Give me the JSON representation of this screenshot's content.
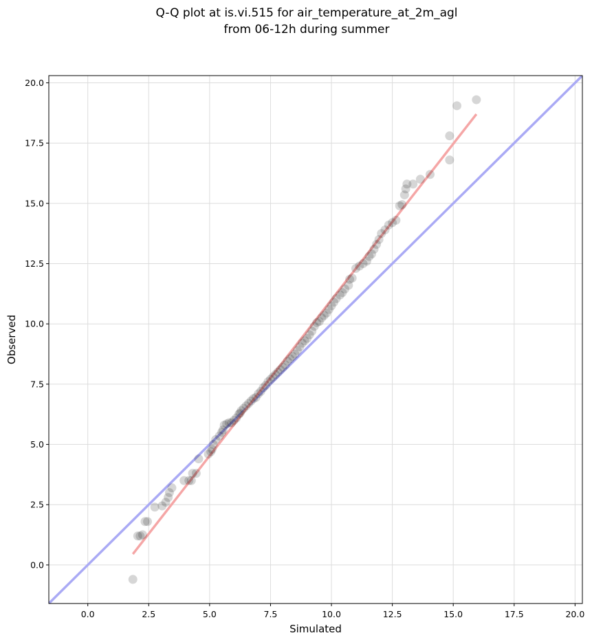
{
  "chart_data": {
    "type": "scatter",
    "title": [
      "Q-Q plot at is.vi.515 for air_temperature_at_2m_agl",
      "from 06-12h during summer"
    ],
    "xlabel": "Simulated",
    "ylabel": "Observed",
    "xlim": [
      -1.6,
      20.3
    ],
    "ylim": [
      -1.6,
      20.3
    ],
    "xticks": [
      0.0,
      2.5,
      5.0,
      7.5,
      10.0,
      12.5,
      15.0,
      17.5,
      20.0
    ],
    "yticks": [
      0.0,
      2.5,
      5.0,
      7.5,
      10.0,
      12.5,
      15.0,
      17.5,
      20.0
    ],
    "xtick_labels": [
      "0.0",
      "2.5",
      "5.0",
      "7.5",
      "10.0",
      "12.5",
      "15.0",
      "17.5",
      "20.0"
    ],
    "ytick_labels": [
      "0.0",
      "2.5",
      "5.0",
      "7.5",
      "10.0",
      "12.5",
      "15.0",
      "17.5",
      "20.0"
    ],
    "grid": true,
    "reference_line": {
      "color": "#aaaaf5",
      "x": [
        -1.6,
        20.3
      ],
      "y": [
        -1.6,
        20.3
      ]
    },
    "fit_line": {
      "color": "#f5a6a6",
      "x": [
        1.85,
        15.95
      ],
      "y": [
        0.45,
        18.7
      ]
    },
    "points": {
      "x": [
        1.85,
        2.05,
        2.15,
        2.25,
        2.35,
        2.45,
        2.75,
        3.05,
        3.2,
        3.3,
        3.35,
        3.45,
        3.95,
        4.15,
        4.25,
        4.3,
        4.45,
        4.55,
        4.95,
        5.05,
        5.1,
        5.15,
        5.25,
        5.4,
        5.5,
        5.55,
        5.6,
        5.7,
        5.8,
        5.9,
        6.0,
        6.1,
        6.2,
        6.25,
        6.3,
        6.4,
        6.5,
        6.6,
        6.7,
        6.8,
        6.9,
        7.0,
        7.1,
        7.2,
        7.3,
        7.4,
        7.5,
        7.6,
        7.7,
        7.8,
        7.9,
        8.0,
        8.1,
        8.2,
        8.3,
        8.4,
        8.5,
        8.6,
        8.7,
        8.8,
        8.9,
        9.0,
        9.1,
        9.2,
        9.3,
        9.4,
        9.5,
        9.6,
        9.7,
        9.8,
        9.9,
        10.0,
        10.1,
        10.2,
        10.35,
        10.45,
        10.55,
        10.7,
        10.75,
        10.85,
        11.0,
        11.15,
        11.3,
        11.45,
        11.55,
        11.65,
        11.75,
        11.85,
        11.95,
        12.05,
        12.2,
        12.35,
        12.5,
        12.65,
        12.8,
        12.9,
        13.0,
        13.05,
        13.1,
        13.35,
        13.65,
        14.05,
        14.85,
        14.85,
        15.15,
        15.95
      ],
      "y": [
        -0.6,
        1.2,
        1.2,
        1.25,
        1.8,
        1.8,
        2.4,
        2.45,
        2.6,
        2.8,
        3.0,
        3.2,
        3.5,
        3.5,
        3.5,
        3.8,
        3.8,
        4.4,
        4.6,
        4.7,
        4.8,
        5.0,
        5.2,
        5.35,
        5.5,
        5.6,
        5.8,
        5.85,
        5.9,
        5.9,
        6.0,
        6.1,
        6.25,
        6.3,
        6.4,
        6.5,
        6.6,
        6.7,
        6.8,
        6.9,
        6.95,
        7.1,
        7.2,
        7.35,
        7.45,
        7.6,
        7.7,
        7.8,
        7.9,
        8.0,
        8.1,
        8.2,
        8.3,
        8.45,
        8.55,
        8.65,
        8.75,
        8.9,
        9.05,
        9.2,
        9.3,
        9.4,
        9.55,
        9.7,
        9.9,
        10.05,
        10.1,
        10.25,
        10.35,
        10.45,
        10.6,
        10.75,
        10.9,
        11.05,
        11.2,
        11.3,
        11.45,
        11.6,
        11.85,
        11.9,
        12.3,
        12.4,
        12.5,
        12.6,
        12.8,
        12.9,
        13.1,
        13.3,
        13.5,
        13.75,
        13.9,
        14.1,
        14.2,
        14.3,
        14.9,
        14.95,
        15.35,
        15.6,
        15.8,
        15.8,
        16.0,
        16.2,
        16.8,
        17.8,
        19.05,
        19.3
      ]
    }
  }
}
